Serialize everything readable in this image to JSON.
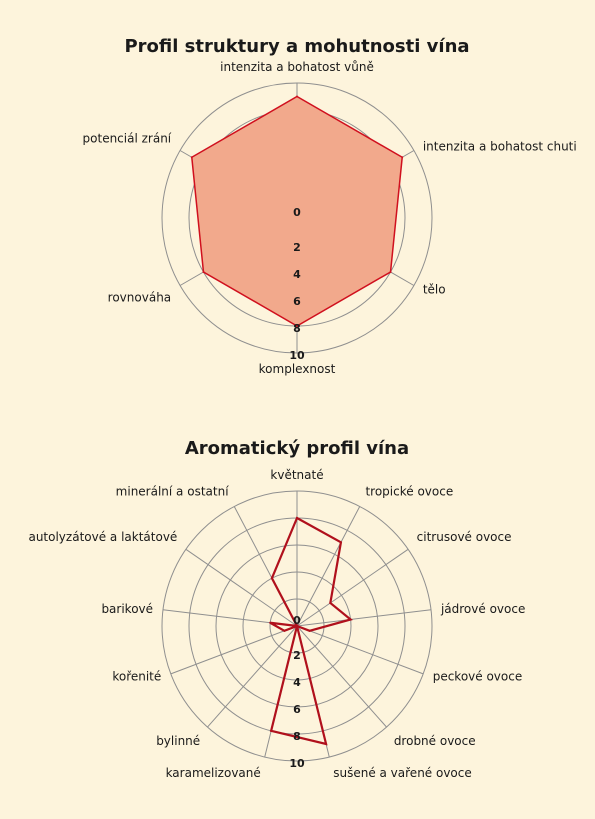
{
  "chart_data": [
    {
      "type": "radar",
      "title": "Profil struktury a mohutnosti vína",
      "categories": [
        "intenzita a bohatost vůně",
        "intenzita a bohatost chuti",
        "tělo",
        "komplexnost",
        "rovnováha",
        "potenciál zrání"
      ],
      "values": [
        9,
        9,
        8,
        8,
        8,
        9
      ],
      "range": [
        0,
        10
      ],
      "ticks": [
        "0",
        "2",
        "4",
        "6",
        "8",
        "10"
      ],
      "grid": true,
      "fill": true,
      "colors": {
        "line": "#d0101e",
        "fill": "#f2a98c",
        "grid": "#8f8f8f"
      }
    },
    {
      "type": "radar",
      "title": "Aromatický profil vína",
      "categories": [
        "květnaté",
        "tropické ovoce",
        "citrusové ovoce",
        "jádrové ovoce",
        "peckové ovoce",
        "drobné ovoce",
        "sušené a vařené ovoce",
        "karamelizované",
        "bylinné",
        "kořenité",
        "barikové",
        "autolyzátové a laktátové",
        "minerální a ostatní"
      ],
      "values": [
        8,
        7,
        3,
        4,
        1,
        0,
        9,
        8,
        0,
        1,
        2,
        0,
        4
      ],
      "range": [
        0,
        10
      ],
      "ticks": [
        "0",
        "2",
        "4",
        "6",
        "8",
        "10"
      ],
      "grid": true,
      "fill": false,
      "colors": {
        "line": "#b0101c",
        "grid": "#8f8f8f"
      }
    }
  ]
}
